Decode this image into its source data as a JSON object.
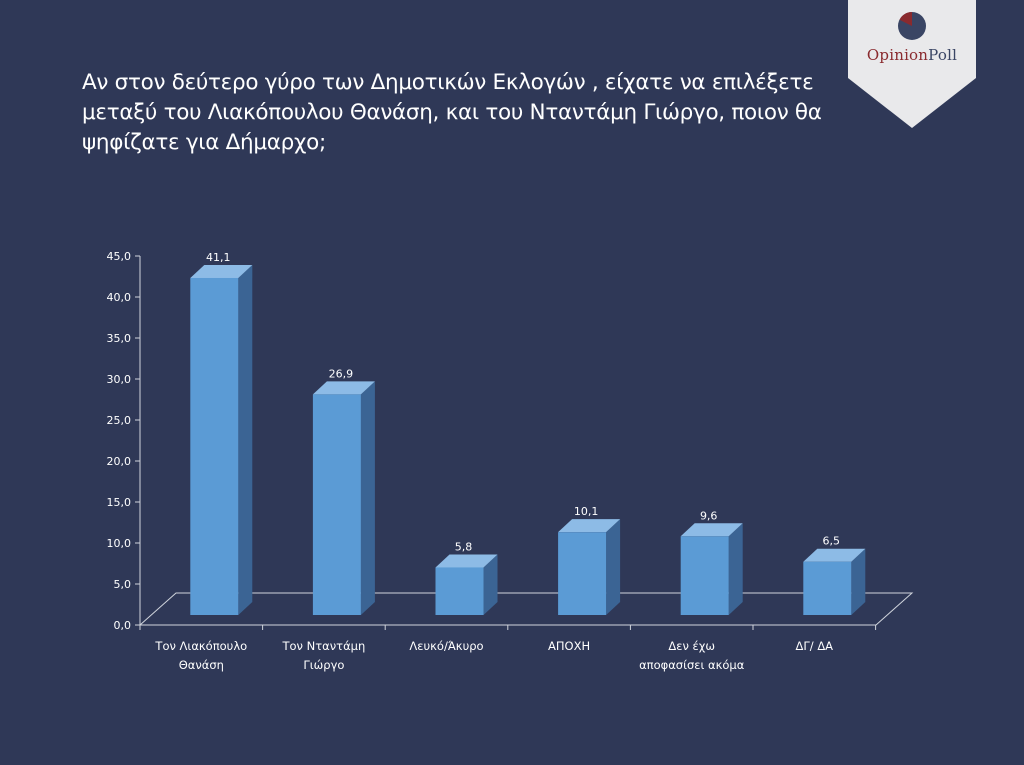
{
  "title": "Αν στον δεύτερο γύρο των Δημοτικών Εκλογών , είχατε να επιλέξετε μεταξύ του Λιακόπουλου Θανάση, και του Νταντάμη Γιώργο, ποιον θα ψηφίζατε  για Δήμαρχο;",
  "logo": {
    "word1": "Opinion",
    "word2": "Poll",
    "accent": "#8a2a2e",
    "base": "#3a4564"
  },
  "colors": {
    "background": "#2f3857",
    "bar_front": "#5b9bd5",
    "bar_side": "#3b6494",
    "bar_top": "#8dbbe6",
    "axis": "#d0d4dc",
    "text": "#ffffff"
  },
  "chart_data": {
    "type": "bar",
    "categories": [
      [
        "Τον Λιακόπουλο",
        "Θανάση"
      ],
      [
        "Τον Νταντάμη",
        "Γιώργο"
      ],
      [
        "Λευκό/Άκυρο"
      ],
      [
        "ΑΠΟΧΗ"
      ],
      [
        "Δεν έχω",
        "αποφασίσει ακόμα"
      ],
      [
        "ΔΓ/ ΔΑ"
      ]
    ],
    "values": [
      41.1,
      26.9,
      5.8,
      10.1,
      9.6,
      6.5
    ],
    "value_labels": [
      "41,1",
      "26,9",
      "5,8",
      "10,1",
      "9,6",
      "6,5"
    ],
    "ylim": [
      0,
      45
    ],
    "yticks": [
      "0,0",
      "5,0",
      "10,0",
      "15,0",
      "20,0",
      "25,0",
      "30,0",
      "35,0",
      "40,0",
      "45,0"
    ],
    "xlabel": "",
    "ylabel": "",
    "grid": false,
    "legend": "none"
  }
}
